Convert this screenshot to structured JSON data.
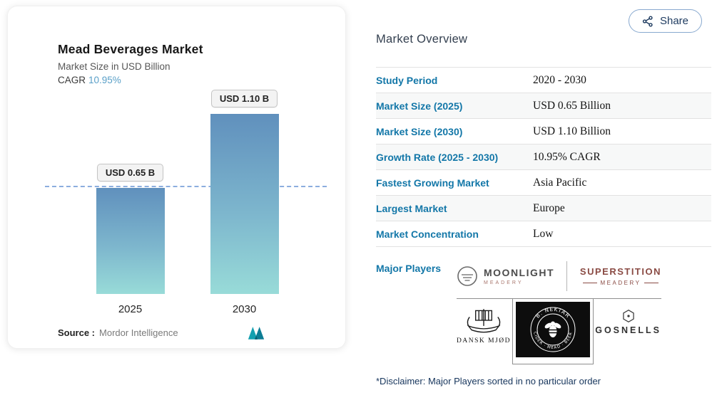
{
  "share": {
    "label": "Share"
  },
  "chart_card": {
    "title": "Mead Beverages Market",
    "subtitle": "Market Size in USD Billion",
    "cagr_label": "CAGR",
    "cagr_value": "10.95%",
    "source_label": "Source :",
    "source_value": "Mordor Intelligence"
  },
  "chart_data": {
    "type": "bar",
    "categories": [
      "2025",
      "2030"
    ],
    "values": [
      0.65,
      1.1
    ],
    "bar_labels": [
      "USD 0.65 B",
      "USD 1.10 B"
    ],
    "title": "Mead Beverages Market",
    "ylabel": "Market Size in USD Billion",
    "cagr": "10.95%",
    "reference_line": 0.65,
    "ylim": [
      0,
      1.1
    ],
    "grid": false,
    "colors": {
      "bar_top": "#6090bd",
      "bar_bottom": "#98dbd8",
      "dashed_line": "#8caede"
    }
  },
  "overview": {
    "heading": "Market Overview",
    "rows": [
      {
        "label": "Study Period",
        "value": "2020 - 2030"
      },
      {
        "label": "Market Size (2025)",
        "value": "USD 0.65 Billion"
      },
      {
        "label": "Market Size (2030)",
        "value": "USD 1.10 Billion"
      },
      {
        "label": "Growth Rate (2025 - 2030)",
        "value": "10.95% CAGR"
      },
      {
        "label": "Fastest Growing Market",
        "value": "Asia Pacific"
      },
      {
        "label": "Largest Market",
        "value": "Europe"
      },
      {
        "label": "Market Concentration",
        "value": "Low"
      }
    ],
    "major_players_label": "Major Players",
    "players": [
      {
        "name": "MOONLIGHT",
        "sub": "MEADERY"
      },
      {
        "name": "SUPERSTITION",
        "sub": "MEADERY"
      },
      {
        "name": "DANSK MJØD"
      },
      {
        "name": "B. NEKTAR",
        "sub": "CIDER · MEAD · BEER"
      },
      {
        "name": "GOSNELLS"
      }
    ],
    "disclaimer": "*Disclaimer: Major Players sorted in no particular order"
  },
  "colors": {
    "link_blue": "#1377a8",
    "heading": "#333f4f",
    "share_border": "#88a9cf",
    "superstition_maroon": "#8a4b44",
    "mordor_teal": "#13a0b0"
  }
}
